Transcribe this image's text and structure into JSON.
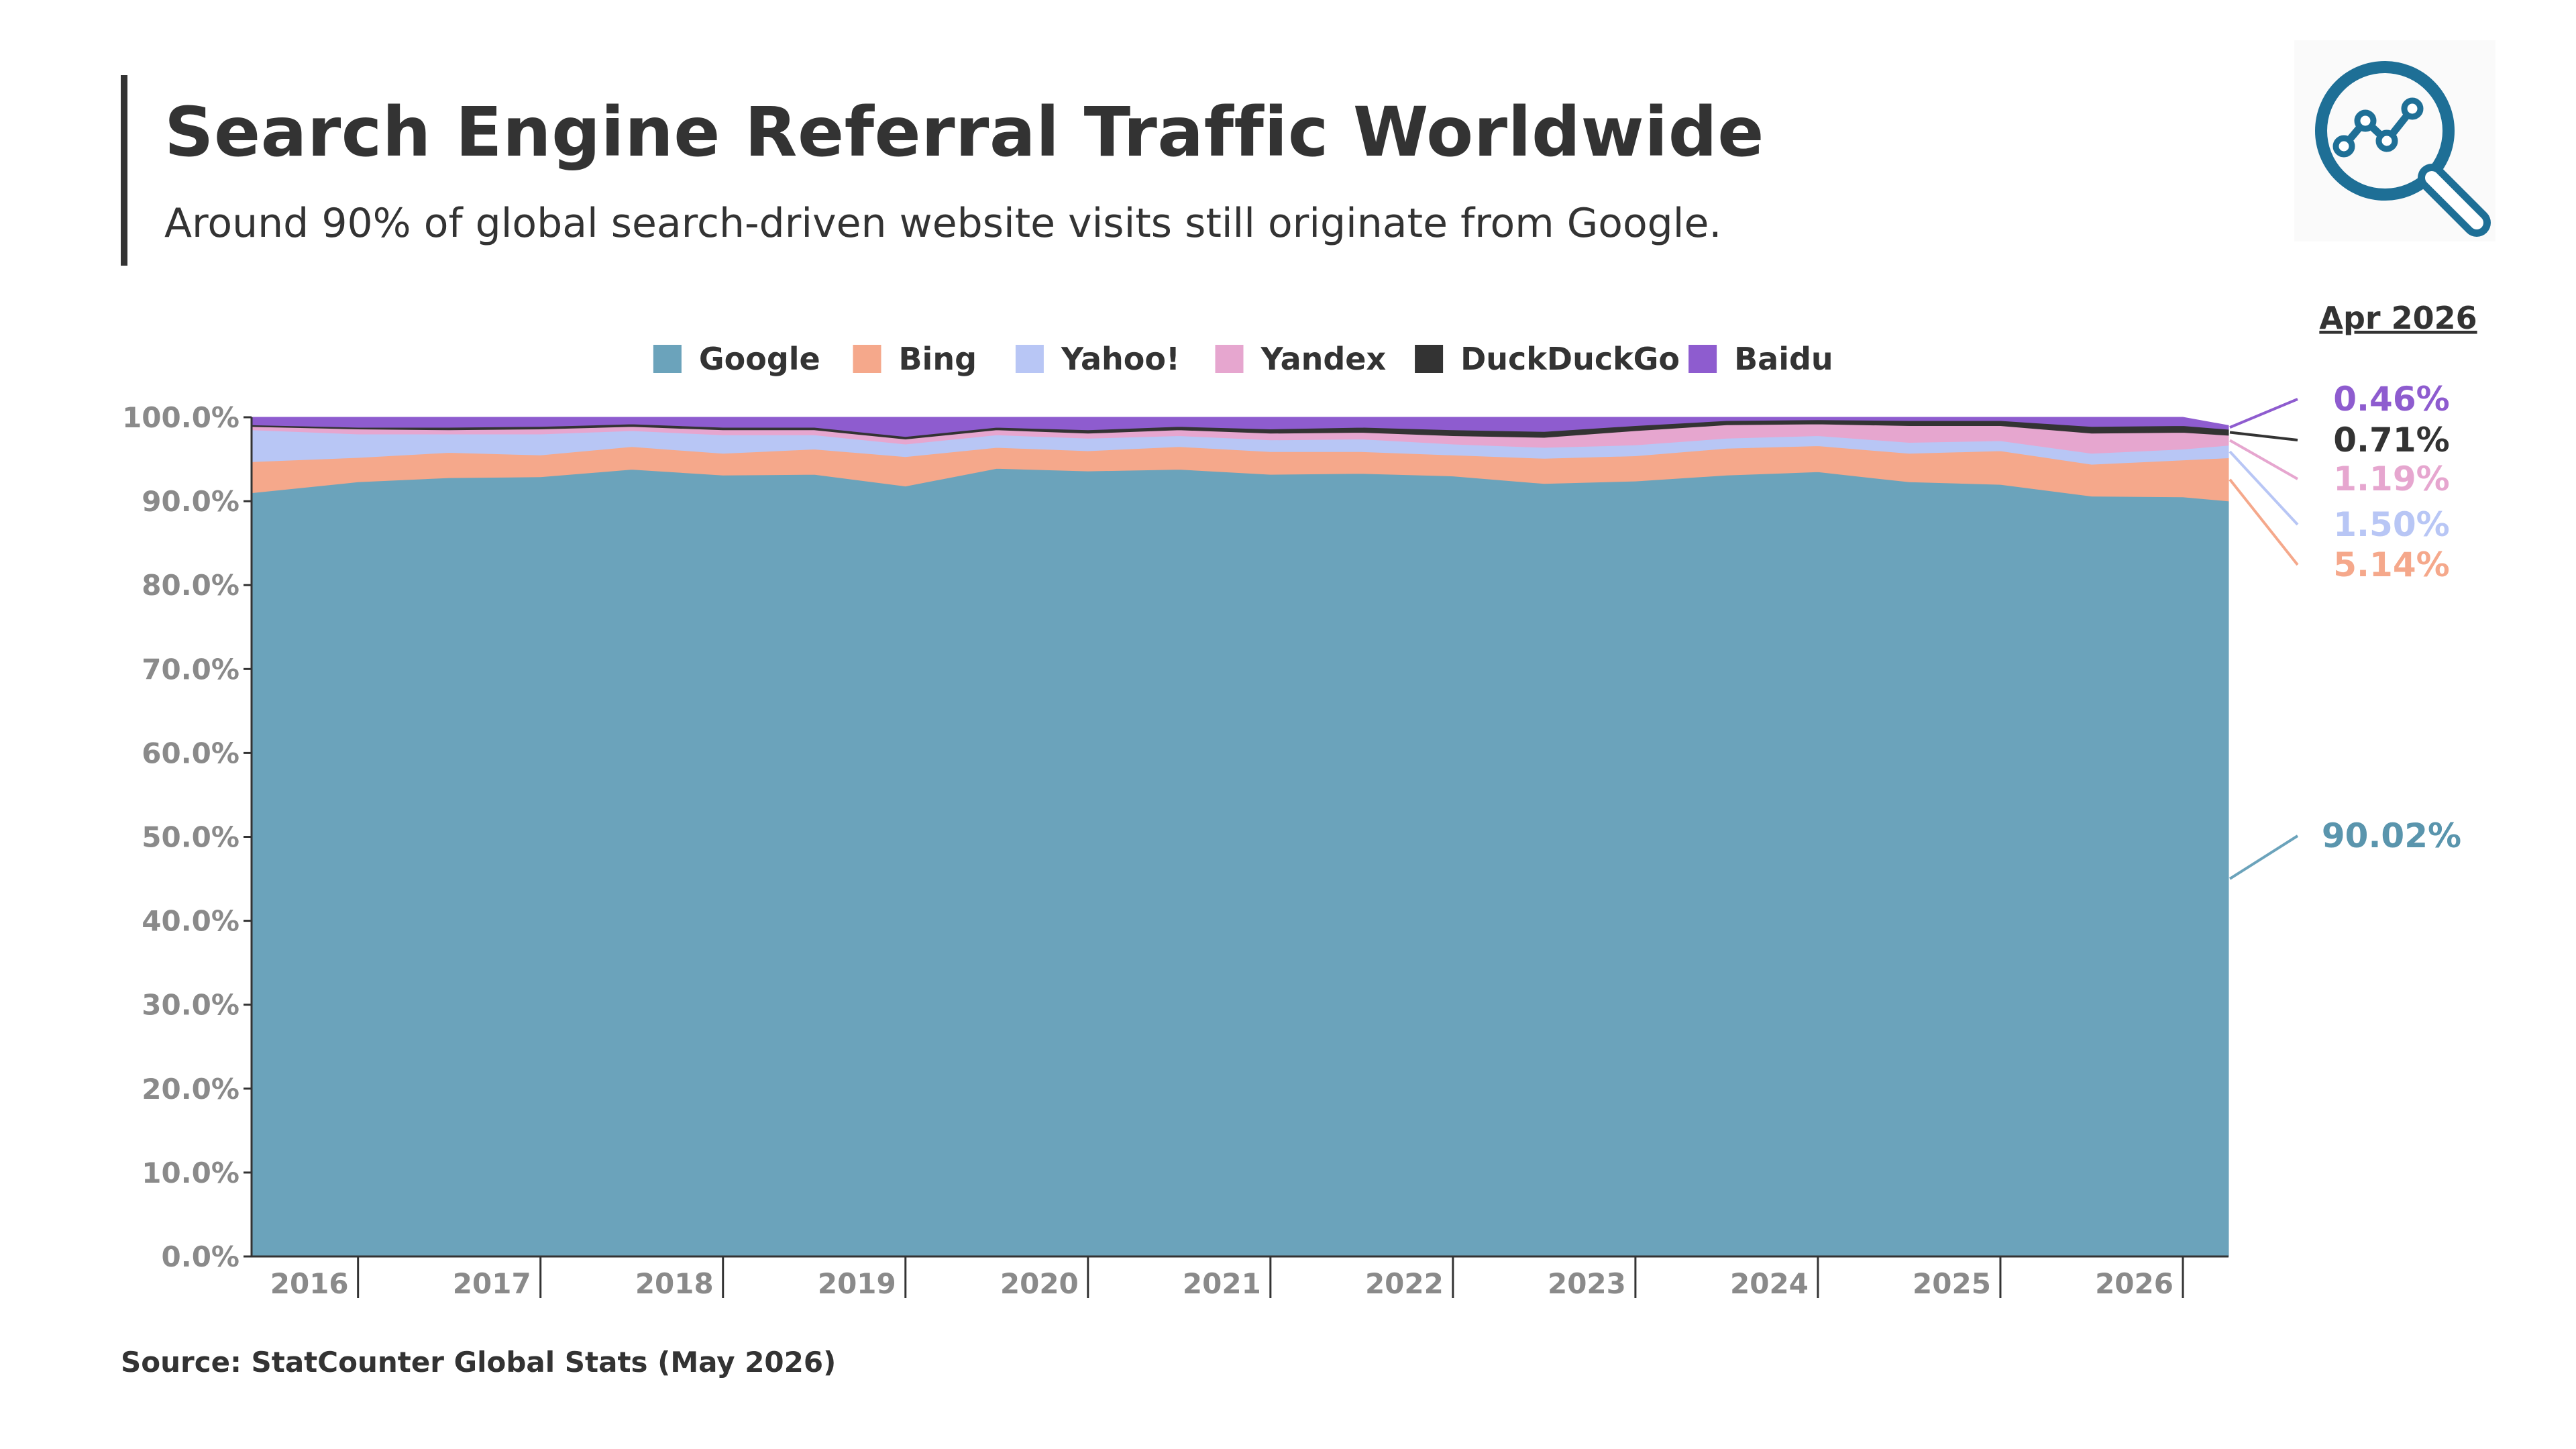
{
  "header": {
    "title": "Search Engine Referral Traffic Worldwide",
    "subtitle": "Around 90% of global search-driven website visits still originate from Google.",
    "source": "Source: StatCounter Global Stats (May 2026)"
  },
  "logo": {
    "icon": "search-analytics-icon",
    "color": "#1e6f96"
  },
  "chart_data": {
    "type": "area",
    "stacked": true,
    "title": "",
    "xlabel": "",
    "ylabel": "",
    "ylim": [
      0,
      100
    ],
    "yticks": [
      "0.0%",
      "10.0%",
      "20.0%",
      "30.0%",
      "40.0%",
      "50.0%",
      "60.0%",
      "70.0%",
      "80.0%",
      "90.0%",
      "100.0%"
    ],
    "xticks": [
      "2016",
      "2017",
      "2018",
      "2019",
      "2020",
      "2021",
      "2022",
      "2023",
      "2024",
      "2025",
      "2026"
    ],
    "grid": false,
    "legend_position": "top-center",
    "x": [
      "Jun 2015",
      "Jan 2016",
      "Jul 2016",
      "Jan 2017",
      "Jul 2017",
      "Jan 2018",
      "Jul 2018",
      "Jan 2019",
      "Jul 2019",
      "Jan 2020",
      "Jul 2020",
      "Jan 2021",
      "Jul 2021",
      "Jan 2022",
      "Jul 2022",
      "Jan 2023",
      "Jul 2023",
      "Jan 2024",
      "Jul 2024",
      "Jan 2025",
      "Jul 2025",
      "Jan 2026",
      "Apr 2026"
    ],
    "series": [
      {
        "name": "Google",
        "color": "#6ba3bb",
        "values": [
          91.0,
          92.3,
          92.8,
          92.9,
          93.8,
          93.1,
          93.2,
          91.8,
          93.9,
          93.6,
          93.8,
          93.2,
          93.3,
          93.0,
          92.1,
          92.4,
          93.1,
          93.5,
          92.3,
          92.0,
          90.6,
          90.5,
          90.02
        ]
      },
      {
        "name": "Bing",
        "color": "#f5a88b",
        "values": [
          3.7,
          2.9,
          3.0,
          2.6,
          2.7,
          2.6,
          3.0,
          3.5,
          2.5,
          2.4,
          2.7,
          2.7,
          2.6,
          2.5,
          3.0,
          3.0,
          3.2,
          3.1,
          3.4,
          4.0,
          3.8,
          4.4,
          5.14
        ]
      },
      {
        "name": "Yahoo!",
        "color": "#b8c6f5",
        "values": [
          3.8,
          2.8,
          2.2,
          2.5,
          1.9,
          2.2,
          1.7,
          1.5,
          1.5,
          1.5,
          1.3,
          1.4,
          1.5,
          1.3,
          1.3,
          1.3,
          1.2,
          1.2,
          1.3,
          1.2,
          1.3,
          1.3,
          1.5
        ]
      },
      {
        "name": "Yandex",
        "color": "#e6a6cf",
        "values": [
          0.4,
          0.6,
          0.5,
          0.6,
          0.5,
          0.6,
          0.6,
          0.6,
          0.6,
          0.6,
          0.7,
          0.8,
          0.8,
          1.0,
          1.2,
          1.7,
          1.6,
          1.4,
          2.0,
          1.8,
          2.4,
          2.0,
          1.19
        ]
      },
      {
        "name": "DuckDuckGo",
        "color": "#333333",
        "values": [
          0.2,
          0.2,
          0.3,
          0.3,
          0.3,
          0.3,
          0.3,
          0.3,
          0.3,
          0.4,
          0.4,
          0.5,
          0.6,
          0.7,
          0.7,
          0.6,
          0.5,
          0.5,
          0.6,
          0.6,
          0.8,
          0.8,
          0.71
        ]
      },
      {
        "name": "Baidu",
        "color": "#8e5ccf",
        "values": [
          0.9,
          1.2,
          1.2,
          1.1,
          0.8,
          1.2,
          1.2,
          2.3,
          1.2,
          1.5,
          1.1,
          1.4,
          1.2,
          1.5,
          1.7,
          1.0,
          0.4,
          0.3,
          0.4,
          0.4,
          1.1,
          1.0,
          0.46
        ]
      }
    ],
    "end_label_header": "Apr 2026",
    "end_labels": [
      {
        "series": "Baidu",
        "text": "0.46%"
      },
      {
        "series": "DuckDuckGo",
        "text": "0.71%"
      },
      {
        "series": "Yandex",
        "text": "1.19%"
      },
      {
        "series": "Yahoo!",
        "text": "1.50%"
      },
      {
        "series": "Bing",
        "text": "5.14%"
      },
      {
        "series": "Google",
        "text": "90.02%"
      }
    ]
  }
}
